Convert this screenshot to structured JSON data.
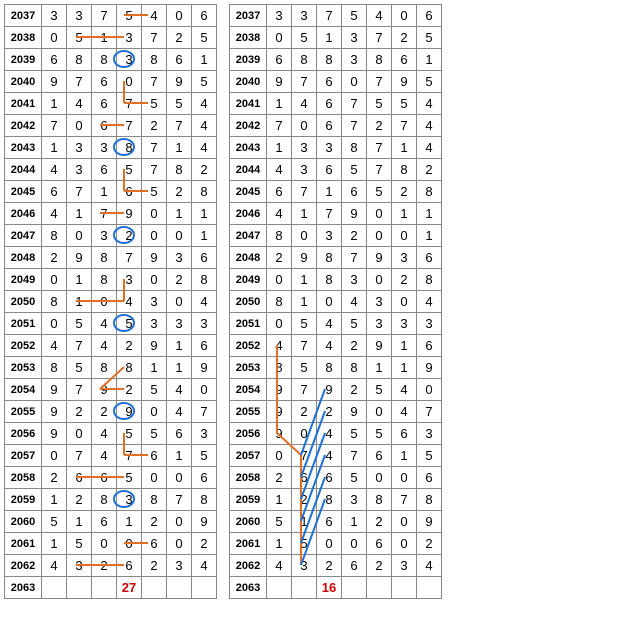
{
  "row_ids": [
    2037,
    2038,
    2039,
    2040,
    2041,
    2042,
    2043,
    2044,
    2045,
    2046,
    2047,
    2048,
    2049,
    2050,
    2051,
    2052,
    2053,
    2054,
    2055,
    2056,
    2057,
    2058,
    2059,
    2060,
    2061,
    2062,
    2063
  ],
  "rows": [
    [
      3,
      3,
      7,
      5,
      4,
      0,
      6
    ],
    [
      0,
      5,
      1,
      3,
      7,
      2,
      5
    ],
    [
      6,
      8,
      8,
      3,
      8,
      6,
      1
    ],
    [
      9,
      7,
      6,
      0,
      7,
      9,
      5
    ],
    [
      1,
      4,
      6,
      7,
      5,
      5,
      4
    ],
    [
      7,
      0,
      6,
      7,
      2,
      7,
      4
    ],
    [
      1,
      3,
      3,
      8,
      7,
      1,
      4
    ],
    [
      4,
      3,
      6,
      5,
      7,
      8,
      2
    ],
    [
      6,
      7,
      1,
      6,
      5,
      2,
      8
    ],
    [
      4,
      1,
      7,
      9,
      0,
      1,
      1
    ],
    [
      8,
      0,
      3,
      2,
      0,
      0,
      1
    ],
    [
      2,
      9,
      8,
      7,
      9,
      3,
      6
    ],
    [
      0,
      1,
      8,
      3,
      0,
      2,
      8
    ],
    [
      8,
      1,
      0,
      4,
      3,
      0,
      4
    ],
    [
      0,
      5,
      4,
      5,
      3,
      3,
      3
    ],
    [
      4,
      7,
      4,
      2,
      9,
      1,
      6
    ],
    [
      8,
      5,
      8,
      8,
      1,
      1,
      9
    ],
    [
      9,
      7,
      9,
      2,
      5,
      4,
      0
    ],
    [
      9,
      2,
      2,
      9,
      0,
      4,
      7
    ],
    [
      9,
      0,
      4,
      5,
      5,
      6,
      3
    ],
    [
      0,
      7,
      4,
      7,
      6,
      1,
      5
    ],
    [
      2,
      6,
      6,
      5,
      0,
      0,
      6
    ],
    [
      1,
      2,
      8,
      3,
      8,
      7,
      8
    ],
    [
      5,
      1,
      6,
      1,
      2,
      0,
      9
    ],
    [
      1,
      5,
      0,
      0,
      6,
      0,
      2
    ],
    [
      4,
      3,
      2,
      6,
      2,
      3,
      4
    ]
  ],
  "left": {
    "prediction": "27",
    "circles": [
      [
        2,
        3
      ],
      [
        6,
        3
      ],
      [
        10,
        3
      ],
      [
        14,
        3
      ],
      [
        18,
        3
      ],
      [
        22,
        3
      ]
    ],
    "circle_color": "#1e6fd6",
    "line_color": "#e07028",
    "lines": [
      [
        [
          0,
          3
        ],
        [
          0,
          4
        ]
      ],
      [
        [
          1,
          1
        ],
        [
          1,
          2
        ],
        [
          1,
          3
        ]
      ],
      [
        [
          3,
          3
        ],
        [
          4,
          3
        ],
        [
          4,
          4
        ]
      ],
      [
        [
          5,
          2
        ],
        [
          5,
          3
        ]
      ],
      [
        [
          7,
          3
        ],
        [
          8,
          3
        ],
        [
          8,
          4
        ]
      ],
      [
        [
          9,
          2
        ],
        [
          9,
          3
        ]
      ],
      [
        [
          12,
          3
        ],
        [
          13,
          3
        ]
      ],
      [
        [
          13,
          1
        ],
        [
          13,
          2
        ],
        [
          13,
          3
        ]
      ],
      [
        [
          16,
          3
        ],
        [
          17,
          2
        ],
        [
          17,
          3
        ]
      ],
      [
        [
          19,
          3
        ],
        [
          20,
          3
        ],
        [
          20,
          4
        ]
      ],
      [
        [
          21,
          1
        ],
        [
          21,
          2
        ],
        [
          21,
          3
        ]
      ],
      [
        [
          24,
          3
        ],
        [
          24,
          4
        ]
      ],
      [
        [
          25,
          1
        ],
        [
          25,
          2
        ],
        [
          25,
          3
        ]
      ]
    ]
  },
  "right": {
    "prediction": "16",
    "circle_color": "#1e6fd6",
    "orange_line_color": "#e07028",
    "blue_line_color": "#1e6fd6",
    "orange_lines": [
      [
        [
          15,
          0
        ],
        [
          16,
          0
        ]
      ],
      [
        [
          16,
          0
        ],
        [
          17,
          0
        ]
      ],
      [
        [
          17,
          0
        ],
        [
          18,
          0
        ]
      ],
      [
        [
          18,
          0
        ],
        [
          19,
          0
        ]
      ],
      [
        [
          19,
          0
        ],
        [
          20,
          1
        ]
      ],
      [
        [
          20,
          1
        ],
        [
          21,
          1
        ]
      ],
      [
        [
          21,
          1
        ],
        [
          22,
          1
        ]
      ],
      [
        [
          22,
          1
        ],
        [
          23,
          1
        ]
      ],
      [
        [
          23,
          1
        ],
        [
          24,
          1
        ]
      ],
      [
        [
          24,
          1
        ],
        [
          25,
          1
        ]
      ]
    ],
    "blue_lines": [
      [
        [
          17,
          2
        ],
        [
          20,
          1
        ]
      ],
      [
        [
          18,
          2
        ],
        [
          21,
          1
        ]
      ],
      [
        [
          19,
          2
        ],
        [
          22,
          1
        ]
      ],
      [
        [
          20,
          2
        ],
        [
          23,
          1
        ]
      ],
      [
        [
          21,
          2
        ],
        [
          24,
          1
        ]
      ],
      [
        [
          22,
          2
        ],
        [
          25,
          1
        ]
      ]
    ]
  },
  "cell": {
    "rh_w": 36,
    "w": 24,
    "h": 22
  }
}
